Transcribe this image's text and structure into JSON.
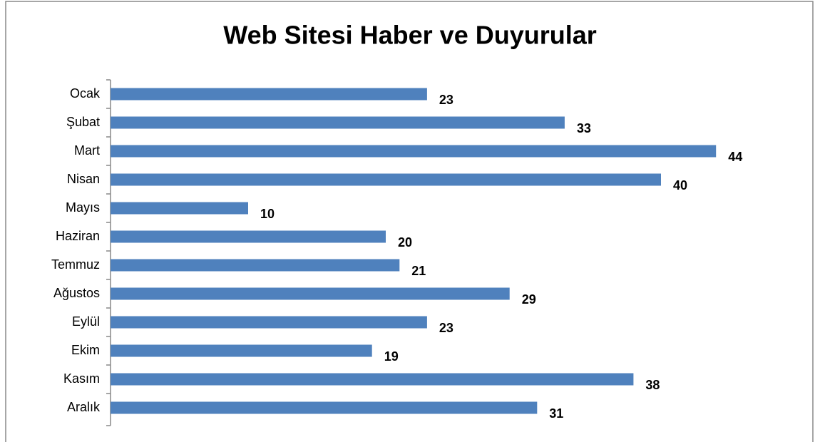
{
  "chart_data": {
    "type": "barh",
    "title": "Web Sitesi Haber ve Duyurular",
    "categories": [
      "Ocak",
      "Şubat",
      "Mart",
      "Nisan",
      "Mayıs",
      "Haziran",
      "Temmuz",
      "Ağustos",
      "Eylül",
      "Ekim",
      "Kasım",
      "Aralık"
    ],
    "values": [
      23,
      33,
      44,
      40,
      10,
      20,
      21,
      29,
      23,
      19,
      38,
      31
    ],
    "color": "#4f81bd",
    "xlim": [
      0,
      50
    ]
  }
}
